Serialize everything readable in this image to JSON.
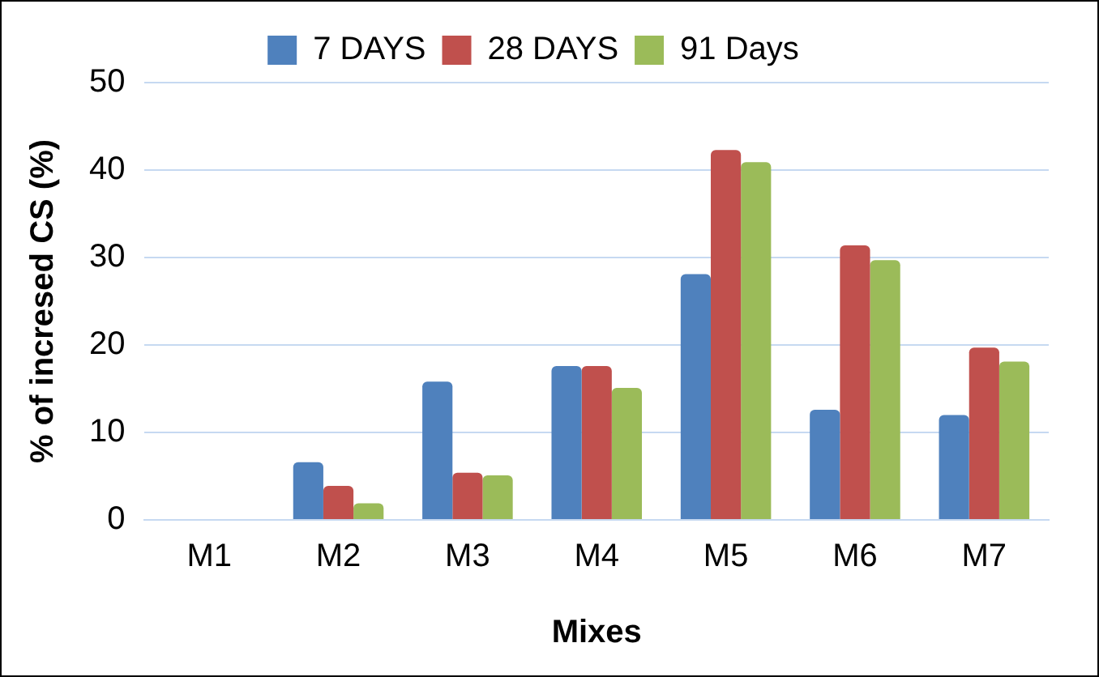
{
  "chart_data": {
    "type": "bar",
    "xlabel": "Mixes",
    "ylabel": "% of incresed CS (%)",
    "categories": [
      "M1",
      "M2",
      "M3",
      "M4",
      "M5",
      "M6",
      "M7"
    ],
    "series": [
      {
        "name": "7 DAYS",
        "color": "#4f81bd",
        "values": [
          0,
          6.6,
          15.8,
          17.6,
          28.1,
          12.6,
          12.0
        ]
      },
      {
        "name": "28 DAYS",
        "color": "#c0504d",
        "values": [
          0,
          3.9,
          5.4,
          17.6,
          42.3,
          31.4,
          19.7
        ]
      },
      {
        "name": "91 Days",
        "color": "#9bbb59",
        "values": [
          0,
          1.9,
          5.1,
          15.1,
          40.9,
          29.7,
          18.1
        ]
      }
    ],
    "ylim": [
      0,
      50
    ],
    "yticks": [
      0,
      10,
      20,
      30,
      40,
      50
    ],
    "grid": "y",
    "legend": "top"
  }
}
